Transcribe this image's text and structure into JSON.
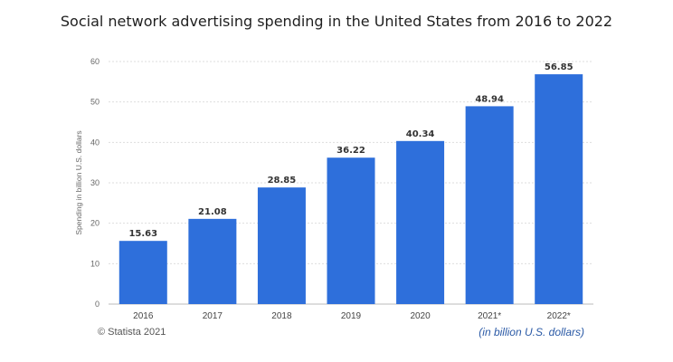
{
  "chart_data": {
    "type": "bar",
    "title": "Social network advertising spending in the United States from 2016 to 2022",
    "xlabel": "",
    "ylabel": "Spending in billion U.S. dollars",
    "categories": [
      "2016",
      "2017",
      "2018",
      "2019",
      "2020",
      "2021*",
      "2022*"
    ],
    "values": [
      15.63,
      21.08,
      28.85,
      36.22,
      40.34,
      48.94,
      56.85
    ],
    "data_labels": [
      "15.63",
      "21.08",
      "28.85",
      "36.22",
      "40.34",
      "48.94",
      "56.85"
    ],
    "ylim": [
      0,
      60
    ],
    "yticks": [
      0,
      10,
      20,
      30,
      40,
      50,
      60
    ],
    "grid": true,
    "legend": "none",
    "bar_color": "#2e6fdb",
    "source": "© Statista 2021",
    "unit_note": "(in billion U.S. dollars)"
  }
}
